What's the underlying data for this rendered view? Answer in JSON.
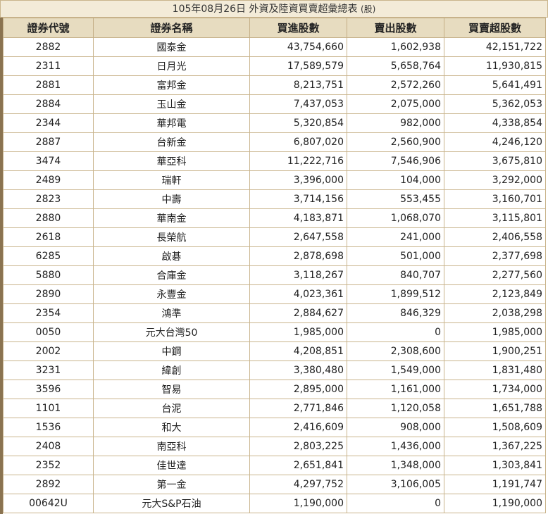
{
  "report": {
    "title": "105年08月26日 外資及陸資買賣超彙總表",
    "unit": "(股)"
  },
  "table": {
    "headers": {
      "code": "證券代號",
      "name": "證券名稱",
      "buy": "買進股數",
      "sell": "賣出股數",
      "net": "買賣超股數"
    },
    "rows": [
      {
        "code": "2882",
        "name": "國泰金",
        "buy": "43,754,660",
        "sell": "1,602,938",
        "net": "42,151,722"
      },
      {
        "code": "2311",
        "name": "日月光",
        "buy": "17,589,579",
        "sell": "5,658,764",
        "net": "11,930,815"
      },
      {
        "code": "2881",
        "name": "富邦金",
        "buy": "8,213,751",
        "sell": "2,572,260",
        "net": "5,641,491"
      },
      {
        "code": "2884",
        "name": "玉山金",
        "buy": "7,437,053",
        "sell": "2,075,000",
        "net": "5,362,053"
      },
      {
        "code": "2344",
        "name": "華邦電",
        "buy": "5,320,854",
        "sell": "982,000",
        "net": "4,338,854"
      },
      {
        "code": "2887",
        "name": "台新金",
        "buy": "6,807,020",
        "sell": "2,560,900",
        "net": "4,246,120"
      },
      {
        "code": "3474",
        "name": "華亞科",
        "buy": "11,222,716",
        "sell": "7,546,906",
        "net": "3,675,810"
      },
      {
        "code": "2489",
        "name": "瑞軒",
        "buy": "3,396,000",
        "sell": "104,000",
        "net": "3,292,000"
      },
      {
        "code": "2823",
        "name": "中壽",
        "buy": "3,714,156",
        "sell": "553,455",
        "net": "3,160,701"
      },
      {
        "code": "2880",
        "name": "華南金",
        "buy": "4,183,871",
        "sell": "1,068,070",
        "net": "3,115,801"
      },
      {
        "code": "2618",
        "name": "長榮航",
        "buy": "2,647,558",
        "sell": "241,000",
        "net": "2,406,558"
      },
      {
        "code": "6285",
        "name": "啟碁",
        "buy": "2,878,698",
        "sell": "501,000",
        "net": "2,377,698"
      },
      {
        "code": "5880",
        "name": "合庫金",
        "buy": "3,118,267",
        "sell": "840,707",
        "net": "2,277,560"
      },
      {
        "code": "2890",
        "name": "永豐金",
        "buy": "4,023,361",
        "sell": "1,899,512",
        "net": "2,123,849"
      },
      {
        "code": "2354",
        "name": "鴻準",
        "buy": "2,884,627",
        "sell": "846,329",
        "net": "2,038,298"
      },
      {
        "code": "0050",
        "name": "元大台灣50",
        "buy": "1,985,000",
        "sell": "0",
        "net": "1,985,000"
      },
      {
        "code": "2002",
        "name": "中鋼",
        "buy": "4,208,851",
        "sell": "2,308,600",
        "net": "1,900,251"
      },
      {
        "code": "3231",
        "name": "緯創",
        "buy": "3,380,480",
        "sell": "1,549,000",
        "net": "1,831,480"
      },
      {
        "code": "3596",
        "name": "智易",
        "buy": "2,895,000",
        "sell": "1,161,000",
        "net": "1,734,000"
      },
      {
        "code": "1101",
        "name": "台泥",
        "buy": "2,771,846",
        "sell": "1,120,058",
        "net": "1,651,788"
      },
      {
        "code": "1536",
        "name": "和大",
        "buy": "2,416,609",
        "sell": "908,000",
        "net": "1,508,609"
      },
      {
        "code": "2408",
        "name": "南亞科",
        "buy": "2,803,225",
        "sell": "1,436,000",
        "net": "1,367,225"
      },
      {
        "code": "2352",
        "name": "佳世達",
        "buy": "2,651,841",
        "sell": "1,348,000",
        "net": "1,303,841"
      },
      {
        "code": "2892",
        "name": "第一金",
        "buy": "4,297,752",
        "sell": "3,106,005",
        "net": "1,191,747"
      },
      {
        "code": "00642U",
        "name": "元大S&P石油",
        "buy": "1,190,000",
        "sell": "0",
        "net": "1,190,000"
      }
    ]
  }
}
